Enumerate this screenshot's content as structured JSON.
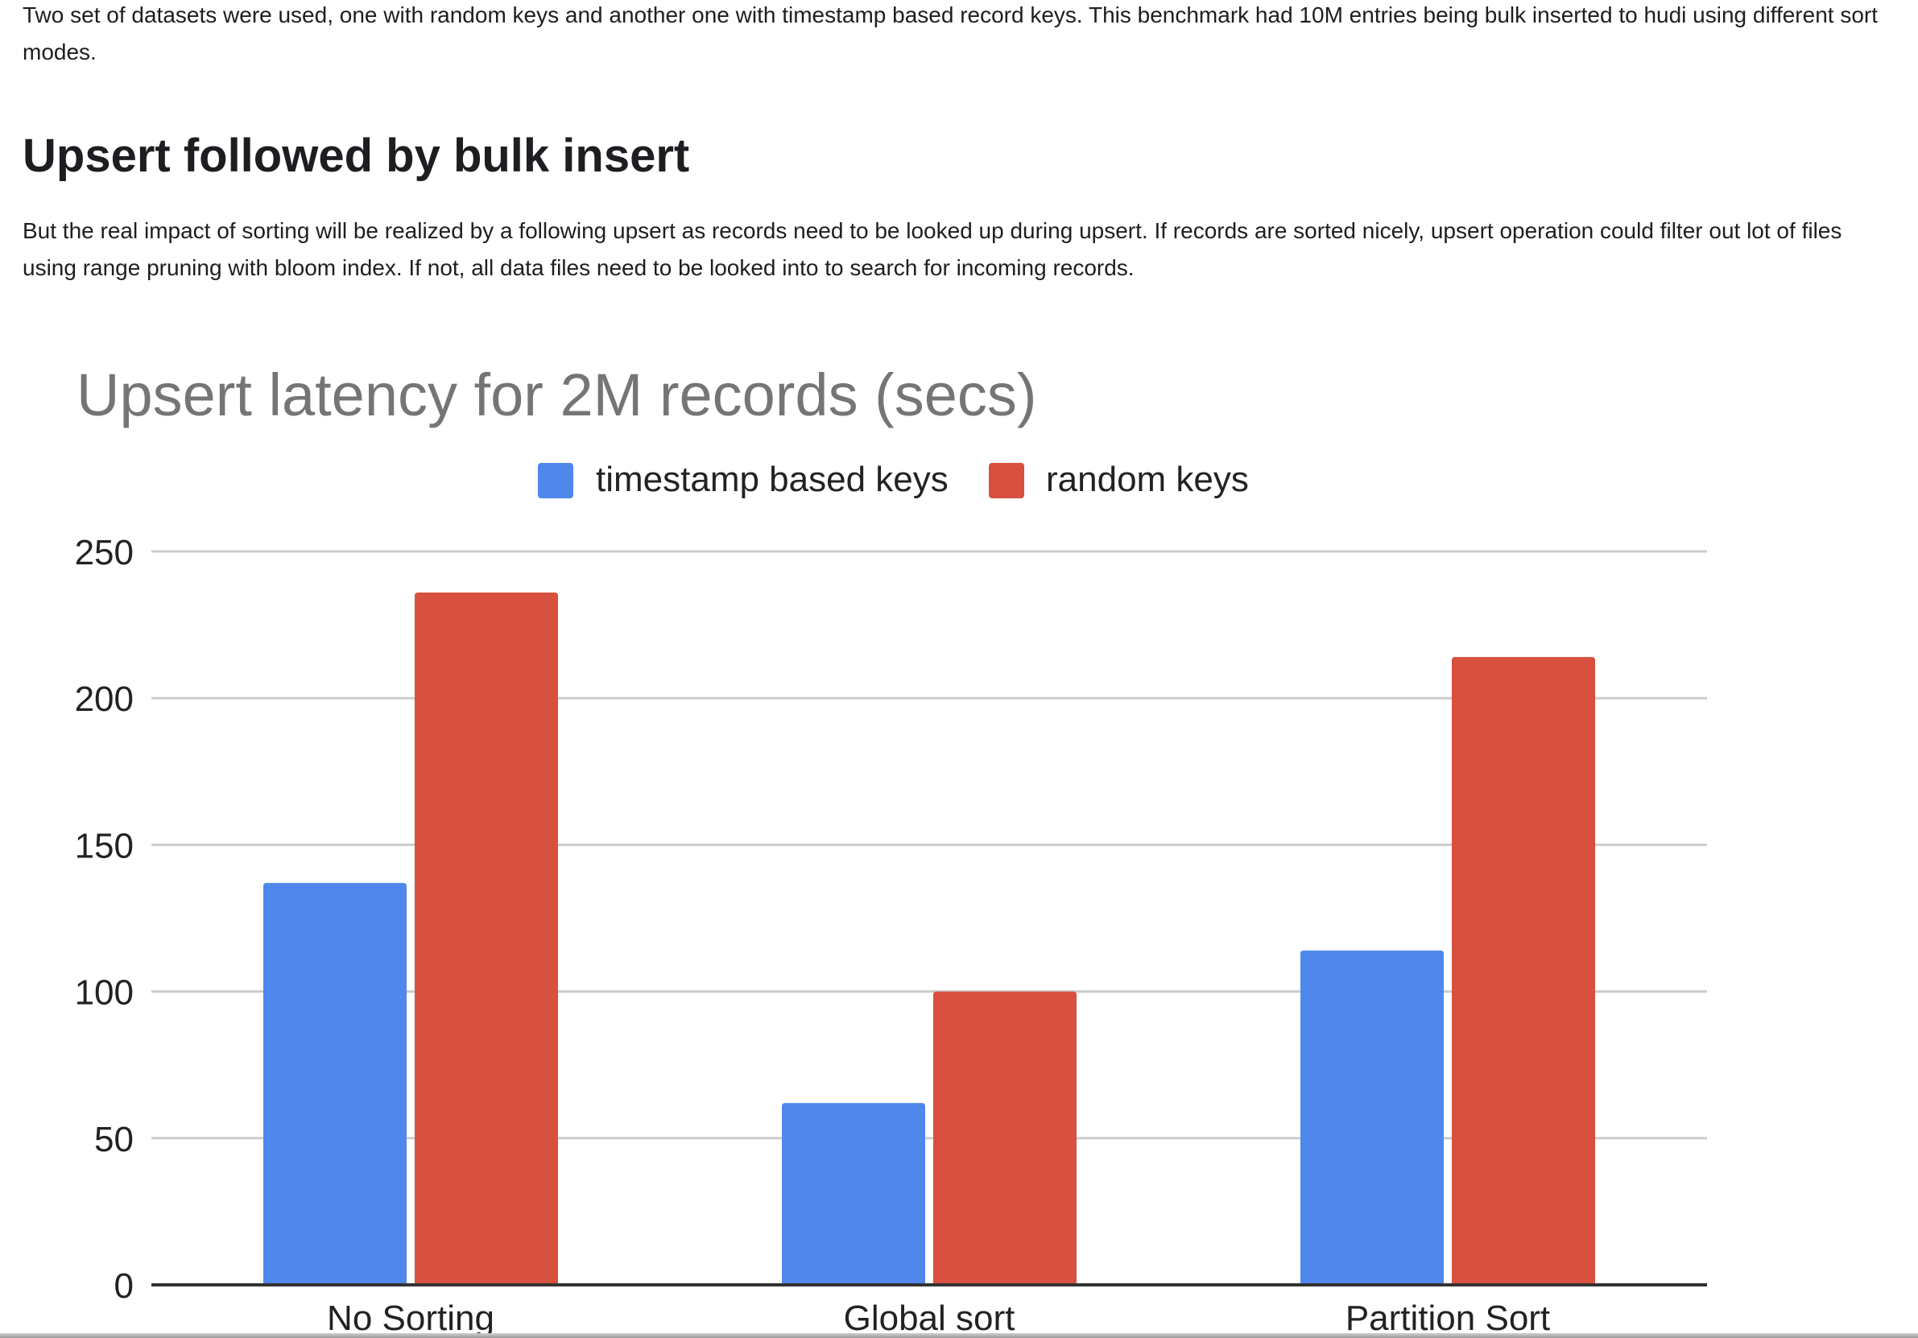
{
  "article": {
    "intro_paragraph": "Two set of datasets were used, one with random keys and another one with timestamp based record keys. This benchmark had 10M entries being bulk inserted to hudi using different sort modes.",
    "section_heading": "Upsert followed by bulk insert",
    "section_paragraph": "But the real impact of sorting will be realized by a following upsert as records need to be looked up during upsert. If records are sorted nicely, upsert operation could filter out lot of files using range pruning with bloom index. If not, all data files need to be looked into to search for incoming records."
  },
  "colors": {
    "timestamp_series": "#5087EC",
    "random_series": "#D85040",
    "gridline": "#CCCCCC",
    "baseline": "#333333",
    "title": "#757575"
  },
  "chart_data": {
    "type": "bar",
    "title": "Upsert latency for 2M records (secs)",
    "xlabel": "",
    "ylabel": "",
    "categories": [
      "No Sorting",
      "Global sort",
      "Partition Sort"
    ],
    "series": [
      {
        "name": "timestamp based keys",
        "values": [
          137,
          62,
          114
        ]
      },
      {
        "name": "random keys",
        "values": [
          236,
          100,
          214
        ]
      }
    ],
    "ylim": [
      0,
      250
    ],
    "yticks": [
      "0",
      "50",
      "100",
      "150",
      "200",
      "250"
    ],
    "grid": true,
    "legend_position": "top"
  }
}
